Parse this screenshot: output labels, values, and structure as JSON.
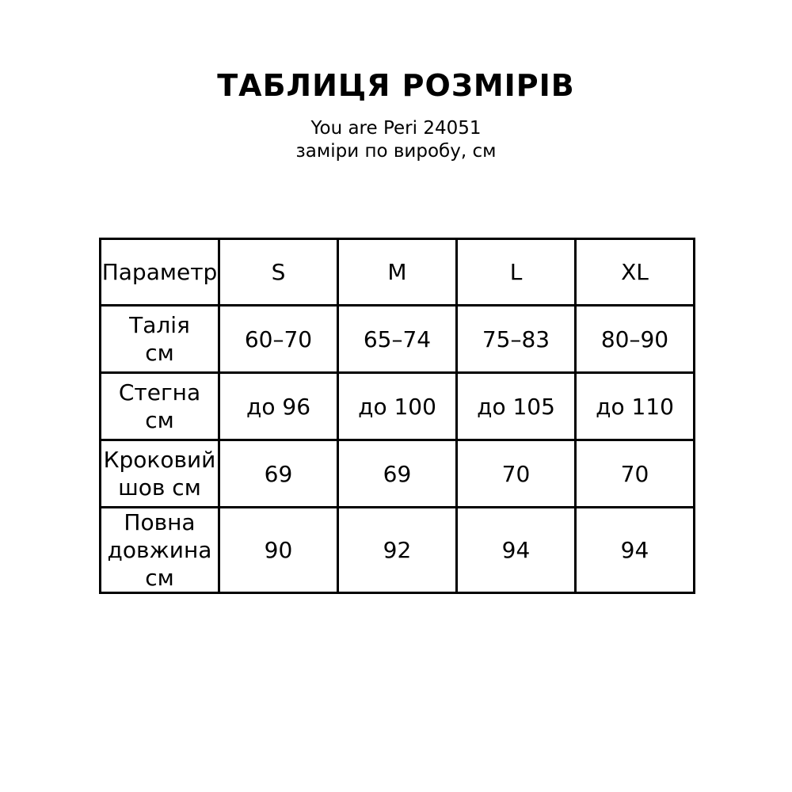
{
  "header": {
    "title": "ТАБЛИЦЯ РОЗМІРІВ",
    "product": "You are Peri 24051",
    "note": "заміри по виробу, см"
  },
  "table": {
    "columns": [
      "Параметр",
      "S",
      "M",
      "L",
      "XL"
    ],
    "rows": [
      {
        "param": "Талія\nсм",
        "values": [
          "60–70",
          "65–74",
          "75–83",
          "80–90"
        ]
      },
      {
        "param": "Стегна\nсм",
        "values": [
          "до 96",
          "до 100",
          "до 105",
          "до 110"
        ]
      },
      {
        "param": "Кроковий\nшов см",
        "values": [
          "69",
          "69",
          "70",
          "70"
        ]
      },
      {
        "param": "Повна\nдовжина см",
        "values": [
          "90",
          "92",
          "94",
          "94"
        ]
      }
    ]
  },
  "colors": {
    "text": "#000000",
    "background": "#ffffff",
    "border": "#000000"
  }
}
